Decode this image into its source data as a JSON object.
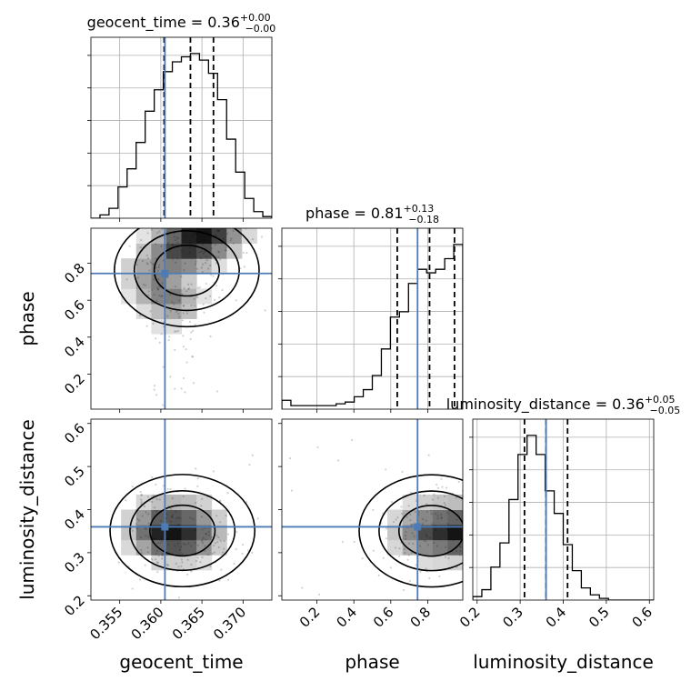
{
  "chart_data": {
    "type": "corner",
    "parameters": [
      "geocent_time",
      "phase",
      "luminosity_distance"
    ],
    "truths": [
      0.3605,
      0.745,
      0.36
    ],
    "axis_ranges": [
      [
        0.3515,
        0.3735
      ],
      [
        0.01,
        0.99
      ],
      [
        0.19,
        0.61
      ]
    ],
    "ticks": {
      "geocent_time": [
        "0.355",
        "0.360",
        "0.365",
        "0.370"
      ],
      "phase": [
        "0.2",
        "0.4",
        "0.6",
        "0.8"
      ],
      "luminosity_distance_x": [
        "0.2",
        "0.3",
        "0.4",
        "0.5",
        "0.6"
      ],
      "luminosity_distance_y": [
        "0.2",
        "0.3",
        "0.4",
        "0.5",
        "0.6"
      ]
    },
    "tick_values": {
      "geocent_time": [
        0.355,
        0.36,
        0.365,
        0.37
      ],
      "phase": [
        0.2,
        0.4,
        0.6,
        0.8
      ],
      "luminosity_distance": [
        0.2,
        0.3,
        0.4,
        0.5,
        0.6
      ]
    },
    "titles": [
      {
        "label": "geocent_time = 0.36",
        "plus": "+0.00",
        "minus": "−0.00"
      },
      {
        "label": "phase = 0.81",
        "plus": "+0.13",
        "minus": "−0.18"
      },
      {
        "label": "luminosity_distance = 0.36",
        "plus": "+0.05",
        "minus": "−0.05"
      }
    ],
    "quantiles": {
      "geocent_time": [
        0.3604,
        0.3636,
        0.3664
      ],
      "phase": [
        0.635,
        0.81,
        0.945
      ],
      "luminosity_distance": [
        0.31,
        0.36,
        0.41
      ]
    },
    "hist_geocent_time": {
      "edges": [
        0.3515,
        0.3526,
        0.3537,
        0.3548,
        0.3559,
        0.357,
        0.3581,
        0.3592,
        0.3603,
        0.3614,
        0.3625,
        0.3636,
        0.3647,
        0.3658,
        0.3669,
        0.368,
        0.3691,
        0.3702,
        0.3713,
        0.3724,
        0.3735
      ],
      "counts": [
        0.0,
        0.02,
        0.06,
        0.19,
        0.3,
        0.46,
        0.65,
        0.78,
        0.89,
        0.95,
        0.98,
        1.0,
        0.96,
        0.88,
        0.72,
        0.48,
        0.28,
        0.12,
        0.04,
        0.01
      ]
    },
    "hist_phase": {
      "edges": [
        0.01,
        0.059,
        0.108,
        0.157,
        0.206,
        0.255,
        0.304,
        0.353,
        0.402,
        0.451,
        0.5,
        0.549,
        0.598,
        0.647,
        0.696,
        0.745,
        0.794,
        0.843,
        0.892,
        0.941,
        0.99
      ],
      "counts": [
        0.05,
        0.02,
        0.02,
        0.02,
        0.02,
        0.02,
        0.03,
        0.04,
        0.07,
        0.11,
        0.19,
        0.34,
        0.52,
        0.55,
        0.71,
        0.79,
        0.77,
        0.79,
        0.85,
        0.93
      ]
    },
    "hist_luminosity_distance": {
      "edges": [
        0.19,
        0.211,
        0.232,
        0.253,
        0.274,
        0.295,
        0.316,
        0.337,
        0.358,
        0.379,
        0.4,
        0.421,
        0.442,
        0.463,
        0.484,
        0.505,
        0.526,
        0.547,
        0.568,
        0.589,
        0.61
      ],
      "counts": [
        0.02,
        0.06,
        0.19,
        0.33,
        0.58,
        0.84,
        0.95,
        0.84,
        0.63,
        0.5,
        0.32,
        0.17,
        0.07,
        0.03,
        0.01,
        0.0,
        0.0,
        0.0,
        0.0,
        0.0
      ]
    },
    "contours_phase_vs_geocent_time": {
      "x": [
        0.3547,
        0.3562,
        0.3578,
        0.3594,
        0.3609,
        0.3625,
        0.364,
        0.3656,
        0.3671,
        0.3687,
        0.3702,
        0.3718
      ],
      "y": [
        0.05,
        0.13,
        0.22,
        0.3,
        0.38,
        0.46,
        0.54,
        0.62,
        0.7,
        0.79,
        0.87,
        0.95
      ],
      "z": [
        [
          0.0,
          0.0,
          0.0,
          0.02,
          0.05,
          0.04,
          0.03,
          0.02,
          0.0,
          0.0,
          0.0,
          0.0
        ],
        [
          0.0,
          0.0,
          0.0,
          0.03,
          0.06,
          0.05,
          0.04,
          0.02,
          0.0,
          0.0,
          0.0,
          0.0
        ],
        [
          0.0,
          0.0,
          0.0,
          0.03,
          0.06,
          0.05,
          0.04,
          0.02,
          0.0,
          0.0,
          0.0,
          0.0
        ],
        [
          0.0,
          0.0,
          0.0,
          0.03,
          0.07,
          0.06,
          0.04,
          0.02,
          0.0,
          0.0,
          0.0,
          0.0
        ],
        [
          0.0,
          0.0,
          0.0,
          0.04,
          0.08,
          0.07,
          0.05,
          0.03,
          0.0,
          0.0,
          0.0,
          0.0
        ],
        [
          0.0,
          0.0,
          0.02,
          0.07,
          0.13,
          0.14,
          0.1,
          0.05,
          0.01,
          0.0,
          0.0,
          0.0
        ],
        [
          0.0,
          0.0,
          0.04,
          0.15,
          0.29,
          0.38,
          0.27,
          0.11,
          0.02,
          0.0,
          0.0,
          0.0
        ],
        [
          0.0,
          0.03,
          0.12,
          0.33,
          0.52,
          0.55,
          0.32,
          0.12,
          0.03,
          0.0,
          0.0,
          0.0
        ],
        [
          0.0,
          0.06,
          0.19,
          0.4,
          0.55,
          0.41,
          0.22,
          0.1,
          0.03,
          0.0,
          0.0,
          0.0
        ],
        [
          0.0,
          0.05,
          0.2,
          0.38,
          0.5,
          0.54,
          0.48,
          0.31,
          0.14,
          0.04,
          0.01,
          0.0
        ],
        [
          0.0,
          0.02,
          0.1,
          0.26,
          0.5,
          0.78,
          0.86,
          0.74,
          0.5,
          0.24,
          0.07,
          0.01
        ],
        [
          0.0,
          0.0,
          0.03,
          0.12,
          0.32,
          0.65,
          0.95,
          1.0,
          0.82,
          0.46,
          0.16,
          0.03
        ]
      ]
    },
    "contours_luminosity_distance_vs_geocent_time": {
      "x": [
        0.3547,
        0.3562,
        0.3578,
        0.3594,
        0.3609,
        0.3625,
        0.364,
        0.3656,
        0.3671,
        0.3687,
        0.3702,
        0.3718
      ],
      "y": [
        0.2,
        0.23,
        0.27,
        0.31,
        0.35,
        0.38,
        0.42,
        0.46,
        0.5,
        0.54,
        0.58,
        0.61
      ],
      "z": [
        [
          0.0,
          0.0,
          0.0,
          0.0,
          0.0,
          0.0,
          0.0,
          0.0,
          0.0,
          0.0,
          0.0,
          0.0
        ],
        [
          0.0,
          0.0,
          0.0,
          0.01,
          0.02,
          0.02,
          0.02,
          0.02,
          0.01,
          0.0,
          0.0,
          0.0
        ],
        [
          0.0,
          0.01,
          0.05,
          0.11,
          0.18,
          0.21,
          0.2,
          0.14,
          0.07,
          0.02,
          0.0,
          0.0
        ],
        [
          0.0,
          0.04,
          0.16,
          0.39,
          0.62,
          0.73,
          0.67,
          0.46,
          0.22,
          0.07,
          0.01,
          0.0
        ],
        [
          0.01,
          0.06,
          0.25,
          0.6,
          0.94,
          1.0,
          0.89,
          0.62,
          0.3,
          0.1,
          0.02,
          0.0
        ],
        [
          0.0,
          0.05,
          0.19,
          0.44,
          0.68,
          0.72,
          0.65,
          0.44,
          0.21,
          0.07,
          0.01,
          0.0
        ],
        [
          0.0,
          0.02,
          0.08,
          0.18,
          0.27,
          0.31,
          0.28,
          0.19,
          0.09,
          0.03,
          0.0,
          0.0
        ],
        [
          0.0,
          0.0,
          0.02,
          0.04,
          0.06,
          0.07,
          0.06,
          0.04,
          0.02,
          0.01,
          0.0,
          0.0
        ],
        [
          0.0,
          0.0,
          0.0,
          0.0,
          0.01,
          0.01,
          0.01,
          0.0,
          0.0,
          0.0,
          0.0,
          0.0
        ],
        [
          0.0,
          0.0,
          0.0,
          0.0,
          0.0,
          0.0,
          0.0,
          0.0,
          0.0,
          0.0,
          0.0,
          0.0
        ],
        [
          0.0,
          0.0,
          0.0,
          0.0,
          0.0,
          0.0,
          0.0,
          0.0,
          0.0,
          0.0,
          0.0,
          0.0
        ],
        [
          0.0,
          0.0,
          0.0,
          0.0,
          0.0,
          0.0,
          0.0,
          0.0,
          0.0,
          0.0,
          0.0,
          0.0
        ]
      ]
    },
    "contours_luminosity_distance_vs_phase": {
      "x": [
        0.05,
        0.13,
        0.22,
        0.3,
        0.38,
        0.46,
        0.54,
        0.62,
        0.7,
        0.79,
        0.87,
        0.95
      ],
      "y": [
        0.2,
        0.23,
        0.27,
        0.31,
        0.35,
        0.38,
        0.42,
        0.46,
        0.5,
        0.54,
        0.58,
        0.61
      ],
      "z": [
        [
          0.0,
          0.0,
          0.0,
          0.0,
          0.0,
          0.0,
          0.0,
          0.0,
          0.0,
          0.0,
          0.0,
          0.0
        ],
        [
          0.0,
          0.0,
          0.0,
          0.0,
          0.0,
          0.0,
          0.0,
          0.01,
          0.01,
          0.01,
          0.02,
          0.02
        ],
        [
          0.0,
          0.0,
          0.0,
          0.0,
          0.0,
          0.01,
          0.02,
          0.05,
          0.1,
          0.15,
          0.17,
          0.19
        ],
        [
          0.0,
          0.0,
          0.0,
          0.0,
          0.0,
          0.02,
          0.07,
          0.17,
          0.35,
          0.5,
          0.57,
          0.66
        ],
        [
          0.0,
          0.0,
          0.0,
          0.0,
          0.0,
          0.03,
          0.09,
          0.24,
          0.5,
          0.77,
          0.89,
          1.0
        ],
        [
          0.0,
          0.0,
          0.0,
          0.0,
          0.0,
          0.02,
          0.06,
          0.17,
          0.35,
          0.51,
          0.61,
          0.66
        ],
        [
          0.0,
          0.0,
          0.0,
          0.0,
          0.0,
          0.01,
          0.03,
          0.07,
          0.14,
          0.21,
          0.25,
          0.28
        ],
        [
          0.0,
          0.0,
          0.0,
          0.0,
          0.0,
          0.0,
          0.01,
          0.01,
          0.02,
          0.04,
          0.05,
          0.06
        ],
        [
          0.0,
          0.0,
          0.0,
          0.0,
          0.0,
          0.0,
          0.0,
          0.0,
          0.0,
          0.0,
          0.01,
          0.01
        ],
        [
          0.0,
          0.0,
          0.0,
          0.0,
          0.0,
          0.0,
          0.0,
          0.0,
          0.0,
          0.0,
          0.0,
          0.0
        ],
        [
          0.0,
          0.0,
          0.0,
          0.0,
          0.0,
          0.0,
          0.0,
          0.0,
          0.0,
          0.0,
          0.0,
          0.0
        ],
        [
          0.0,
          0.0,
          0.0,
          0.0,
          0.0,
          0.0,
          0.0,
          0.0,
          0.0,
          0.0,
          0.0,
          0.0
        ]
      ]
    },
    "colors": {
      "truth": "#4c7bb5",
      "line": "#000000",
      "grid": "#b0b0b0",
      "scatter": "#000000"
    },
    "grid": true
  }
}
